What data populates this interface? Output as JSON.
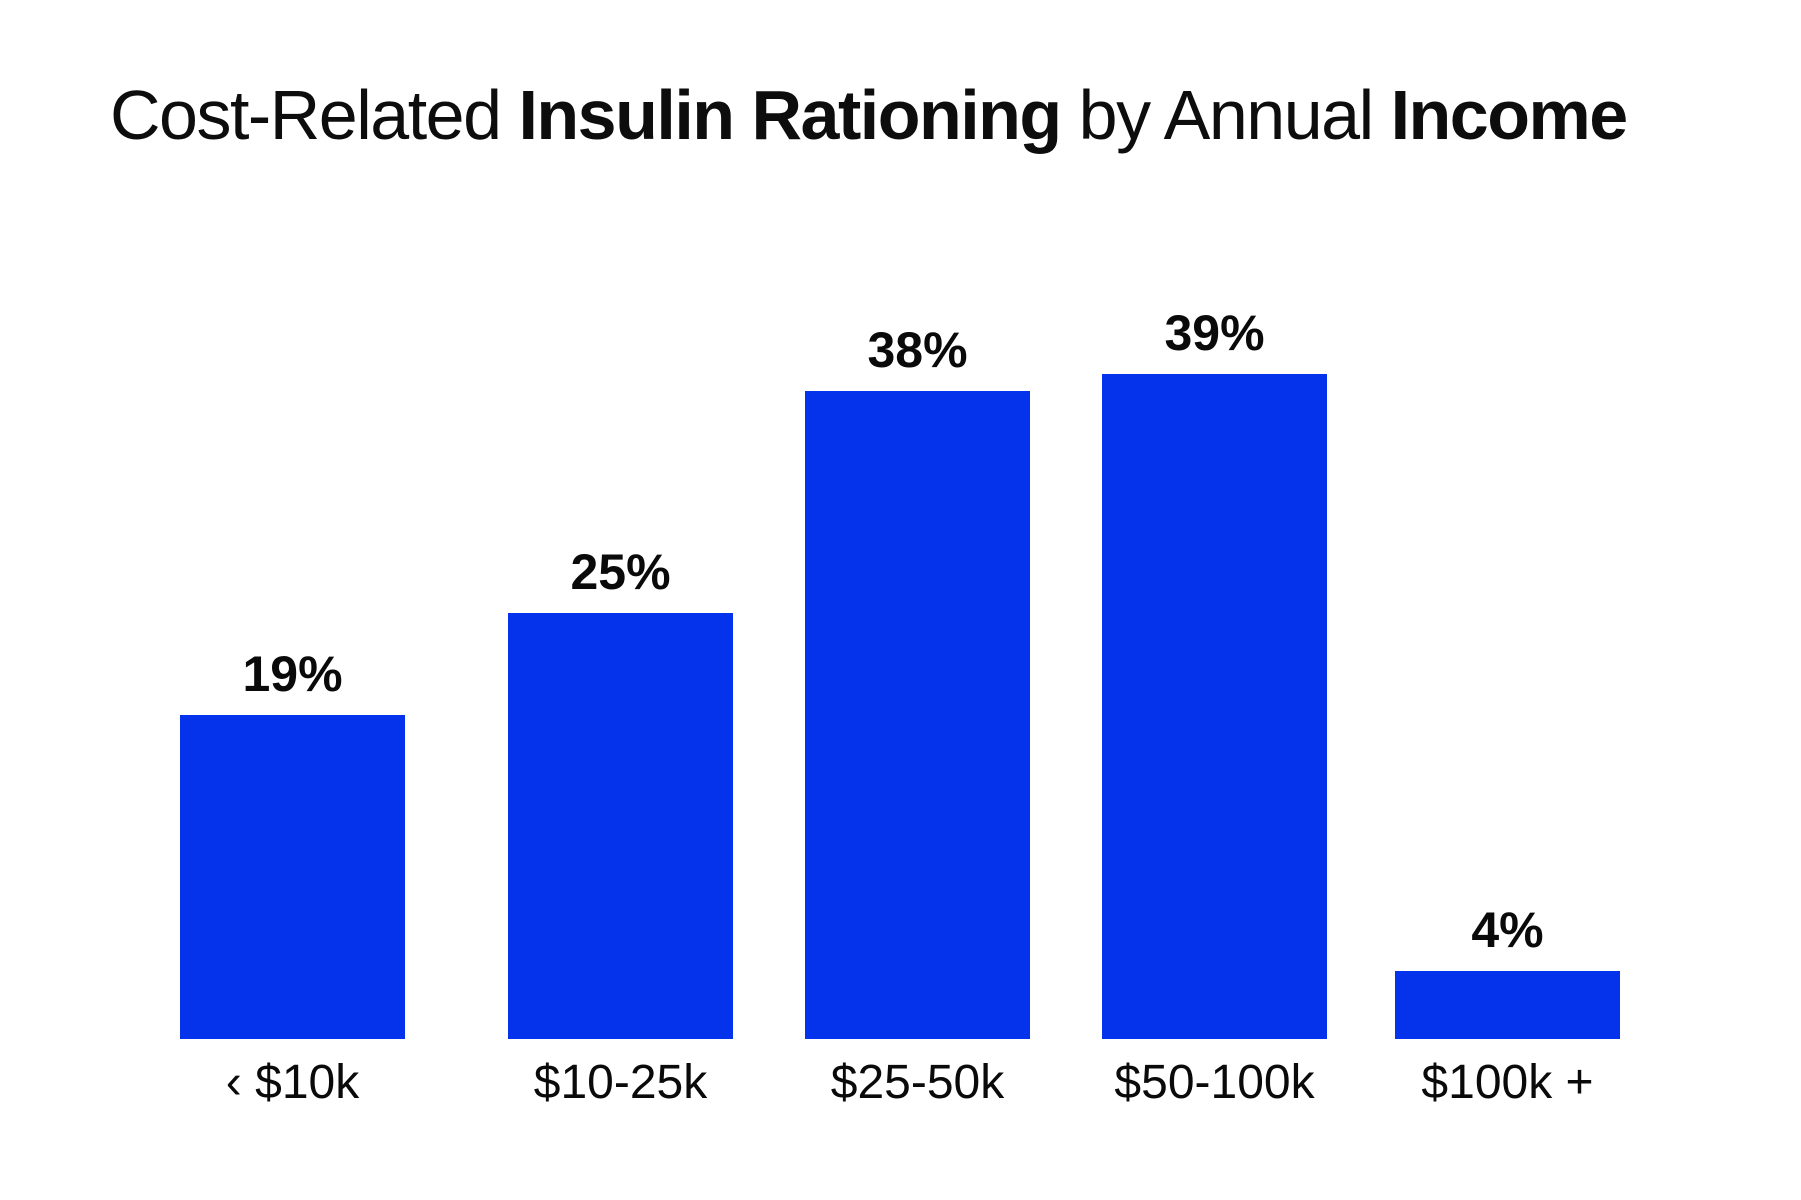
{
  "page": {
    "background": "#ffffff"
  },
  "title": {
    "full": "Cost-Related Insulin Rationing by Annual Income",
    "parts": [
      {
        "text": "Cost-Related ",
        "bold": false
      },
      {
        "text": "Insulin Rationing",
        "bold": true
      },
      {
        "text": " by Annual ",
        "bold": false
      },
      {
        "text": "Income",
        "bold": true
      }
    ],
    "color": "#0d0d0d"
  },
  "chart_data": {
    "type": "bar",
    "title": "Cost-Related Insulin Rationing by Annual Income",
    "categories": [
      "‹ $10k",
      "$10-25k",
      "$25-50k",
      "$50-100k",
      "$100k +"
    ],
    "values": [
      19,
      25,
      38,
      39,
      4
    ],
    "value_labels": [
      "19%",
      "25%",
      "38%",
      "39%",
      "4%"
    ],
    "unit": "%",
    "xlabel": "",
    "ylabel": "",
    "ylim": [
      0,
      42
    ],
    "grid": false,
    "legend": null,
    "axis_lines": false,
    "bar_color": "#0533eb",
    "label_color": "#0a0a0a"
  }
}
